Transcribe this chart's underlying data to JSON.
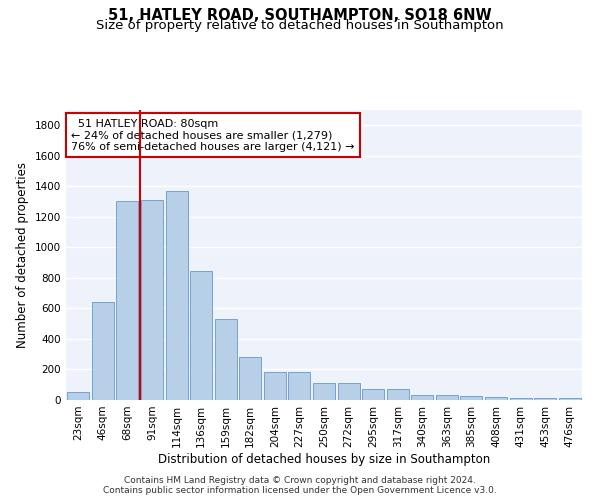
{
  "title": "51, HATLEY ROAD, SOUTHAMPTON, SO18 6NW",
  "subtitle": "Size of property relative to detached houses in Southampton",
  "xlabel": "Distribution of detached houses by size in Southampton",
  "ylabel": "Number of detached properties",
  "categories": [
    "23sqm",
    "46sqm",
    "68sqm",
    "91sqm",
    "114sqm",
    "136sqm",
    "159sqm",
    "182sqm",
    "204sqm",
    "227sqm",
    "250sqm",
    "272sqm",
    "295sqm",
    "317sqm",
    "340sqm",
    "363sqm",
    "385sqm",
    "408sqm",
    "431sqm",
    "453sqm",
    "476sqm"
  ],
  "values": [
    55,
    640,
    1305,
    1310,
    1370,
    845,
    530,
    285,
    185,
    185,
    110,
    110,
    70,
    70,
    35,
    35,
    25,
    20,
    15,
    10,
    15
  ],
  "bar_color": "#b8cfe8",
  "bar_edge_color": "#6699cc",
  "background_color": "#eef2fb",
  "grid_color": "#ffffff",
  "annotation_box_text": "  51 HATLEY ROAD: 80sqm\n← 24% of detached houses are smaller (1,279)\n76% of semi-detached houses are larger (4,121) →",
  "annotation_box_color": "#cc0000",
  "vline_x_index": 2.5,
  "vline_color": "#cc0000",
  "ylim": [
    0,
    1900
  ],
  "yticks": [
    0,
    200,
    400,
    600,
    800,
    1000,
    1200,
    1400,
    1600,
    1800
  ],
  "footer": "Contains HM Land Registry data © Crown copyright and database right 2024.\nContains public sector information licensed under the Open Government Licence v3.0.",
  "title_fontsize": 10.5,
  "subtitle_fontsize": 9.5,
  "xlabel_fontsize": 8.5,
  "ylabel_fontsize": 8.5,
  "tick_fontsize": 7.5,
  "footer_fontsize": 6.5,
  "annotation_fontsize": 8
}
